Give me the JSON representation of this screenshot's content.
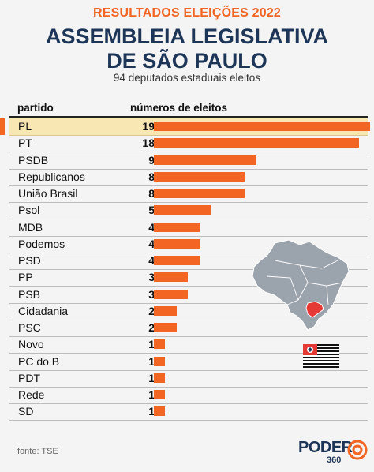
{
  "header": {
    "kicker": "RESULTADOS ELEIÇÕES 2022",
    "title_line1": "ASSEMBLEIA LEGISLATIVA",
    "title_line2": "DE SÃO PAULO",
    "subtitle": "94 deputados estaduais eleitos"
  },
  "columns": {
    "party": "partido",
    "seats": "números de eleitos"
  },
  "footer": {
    "source": "fonte: TSE",
    "logo": "PODER",
    "logo_sub": "360"
  },
  "colors": {
    "accent": "#f26522",
    "title": "#1d3557",
    "highlight": "#f8e6b3",
    "map": "#9ba3ad"
  },
  "icons": {
    "map": "brazil-map-icon",
    "flag": "sao-paulo-flag-icon",
    "logo": "poder360-logo-icon"
  },
  "chart_data": {
    "type": "bar",
    "orientation": "horizontal",
    "title": "ASSEMBLEIA LEGISLATIVA DE SÃO PAULO",
    "categories": [
      "PL",
      "PT",
      "PSDB",
      "Republicanos",
      "União Brasil",
      "Psol",
      "MDB",
      "Podemos",
      "PSD",
      "PP",
      "PSB",
      "Cidadania",
      "PSC",
      "Novo",
      "PC do B",
      "PDT",
      "Rede",
      "SD"
    ],
    "values": [
      19,
      18,
      9,
      8,
      8,
      5,
      4,
      4,
      4,
      3,
      3,
      2,
      2,
      1,
      1,
      1,
      1,
      1
    ],
    "xlim": [
      0,
      19
    ],
    "highlighted": "PL",
    "grid": false,
    "legend": "none"
  }
}
